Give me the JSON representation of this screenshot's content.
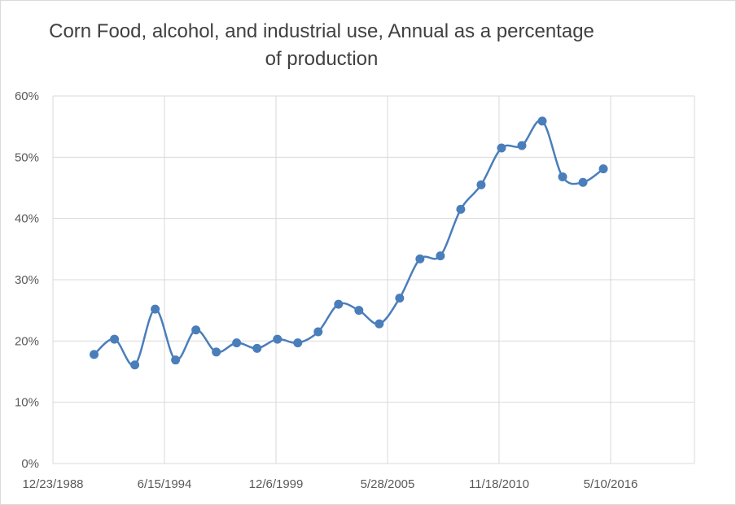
{
  "chart_data": {
    "type": "line",
    "title": "Corn Food, alcohol, and industrial use, Annual as a percentage of production",
    "xlabel": "",
    "ylabel": "",
    "x_tick_labels": [
      "12/23/1988",
      "6/15/1994",
      "12/6/1999",
      "5/28/2005",
      "11/18/2010",
      "5/10/2016"
    ],
    "y_tick_labels": [
      "0%",
      "10%",
      "20%",
      "30%",
      "40%",
      "50%",
      "60%"
    ],
    "ylim": [
      0,
      0.6
    ],
    "grid": true,
    "legend": "none",
    "line_color": "#4a7ebb",
    "x": [
      1991,
      1992,
      1993,
      1994,
      1995,
      1996,
      1997,
      1998,
      1999,
      2000,
      2001,
      2002,
      2003,
      2004,
      2005,
      2006,
      2007,
      2008,
      2009,
      2010,
      2011,
      2012,
      2013,
      2014,
      2015,
      2016
    ],
    "series": [
      {
        "values": [
          0.178,
          0.203,
          0.161,
          0.252,
          0.169,
          0.218,
          0.182,
          0.197,
          0.188,
          0.203,
          0.197,
          0.215,
          0.26,
          0.25,
          0.228,
          0.27,
          0.334,
          0.339,
          0.415,
          0.455,
          0.515,
          0.519,
          0.559,
          0.468,
          0.459,
          0.481
        ]
      }
    ]
  }
}
